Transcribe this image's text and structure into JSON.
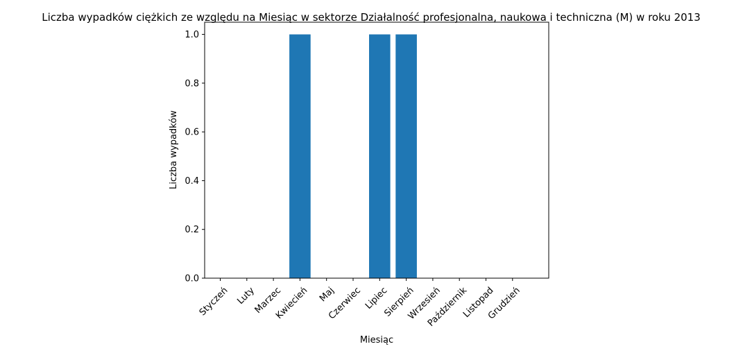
{
  "chart_data": {
    "type": "bar",
    "title": "Liczba wypadków ciężkich ze względu na Miesiąc w sektorze Działalność profesjonalna, naukowa i techniczna  (M) w roku 2013",
    "xlabel": "Miesiąc",
    "ylabel": "Liczba wypadków",
    "categories": [
      "Styczeń",
      "Luty",
      "Marzec",
      "Kwiecień",
      "Maj",
      "Czerwiec",
      "Lipiec",
      "Sierpień",
      "Wrzesień",
      "Październik",
      "Listopad",
      "Grudzień"
    ],
    "values": [
      0,
      0,
      0,
      1,
      0,
      0,
      1,
      1,
      0,
      0,
      0,
      0
    ],
    "ylim": [
      0,
      1.05
    ],
    "yticks": [
      "0.0",
      "0.2",
      "0.4",
      "0.6",
      "0.8",
      "1.0"
    ],
    "grid": false,
    "bar_color": "#1f77b4"
  }
}
